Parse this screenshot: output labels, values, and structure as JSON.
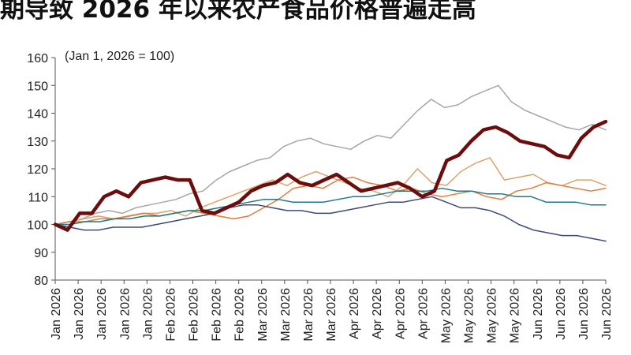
{
  "chart_data": {
    "type": "line",
    "title": "期导致 2026 年以来农产食品价格普遍走高",
    "subtitle": "(Jan 1, 2026 = 100)",
    "ylim": [
      80,
      160
    ],
    "yticks": [
      80,
      90,
      100,
      110,
      120,
      130,
      140,
      150,
      160
    ],
    "x_tick_labels": [
      "Jan 2026",
      "Jan 2026",
      "Jan 2026",
      "Jan 2026",
      "Jan 2026",
      "Feb 2026",
      "Feb 2026",
      "Feb 2026",
      "Feb 2026",
      "Mar 2026",
      "Mar 2026",
      "Mar 2026",
      "Mar 2026",
      "Apr 2026",
      "Apr 2026",
      "Apr 2026",
      "Apr 2026",
      "May 2026",
      "May 2026",
      "May 2026",
      "May 2026",
      "Jun 2026",
      "Jun 2026",
      "Jun 2026",
      "Jun 2026"
    ],
    "x_count": 36,
    "grid": false,
    "series": [
      {
        "color": "#a6a6a6",
        "width": 1.5,
        "values": [
          100,
          101,
          102,
          104,
          105,
          104,
          106,
          107,
          108,
          109,
          111,
          112,
          116,
          119,
          121,
          123,
          124,
          128,
          130,
          131,
          129,
          128,
          127,
          130,
          132,
          131,
          136,
          141,
          145,
          142,
          143,
          146,
          148,
          150,
          144,
          141,
          139,
          137,
          135,
          134,
          136,
          134
        ]
      },
      {
        "color": "#6b0d0d",
        "width": 4.5,
        "values": [
          100,
          98,
          104,
          104,
          110,
          112,
          110,
          115,
          116,
          117,
          116,
          116,
          105,
          104,
          106,
          108,
          112,
          114,
          115,
          118,
          115,
          114,
          116,
          118,
          115,
          112,
          113,
          114,
          115,
          113,
          110,
          112,
          123,
          125,
          130,
          134,
          135,
          133,
          130,
          129,
          128,
          125,
          124,
          131,
          135,
          137
        ]
      },
      {
        "color": "#d9a36a",
        "width": 1.5,
        "values": [
          100,
          101,
          102,
          103,
          102,
          103,
          104,
          104,
          105,
          103,
          106,
          108,
          110,
          112,
          114,
          116,
          114,
          117,
          119,
          117,
          115,
          113,
          112,
          110,
          114,
          120,
          115,
          114,
          119,
          122,
          124,
          116,
          117,
          118,
          115,
          114,
          116,
          116,
          114
        ]
      },
      {
        "color": "#e07b39",
        "width": 1.5,
        "values": [
          100,
          101,
          101,
          102,
          102,
          103,
          104,
          103,
          104,
          105,
          104,
          103,
          102,
          103,
          106,
          109,
          113,
          114,
          113,
          116,
          117,
          115,
          114,
          112,
          113,
          111,
          110,
          111,
          112,
          110,
          109,
          112,
          113,
          115,
          114,
          113,
          112,
          113
        ]
      },
      {
        "color": "#1a7a8c",
        "width": 1.5,
        "values": [
          100,
          100,
          101,
          101,
          102,
          102,
          103,
          103,
          104,
          105,
          105,
          106,
          107,
          108,
          109,
          109,
          108,
          108,
          108,
          109,
          110,
          110,
          111,
          112,
          112,
          112,
          113,
          112,
          112,
          111,
          111,
          110,
          110,
          108,
          108,
          108,
          107,
          107
        ]
      },
      {
        "color": "#3a4a7a",
        "width": 1.5,
        "values": [
          100,
          99,
          98,
          98,
          99,
          99,
          99,
          100,
          101,
          102,
          103,
          104,
          106,
          107,
          107,
          106,
          105,
          105,
          104,
          104,
          105,
          106,
          107,
          108,
          108,
          109,
          110,
          108,
          106,
          106,
          105,
          103,
          100,
          98,
          97,
          96,
          96,
          95,
          94
        ]
      }
    ]
  }
}
